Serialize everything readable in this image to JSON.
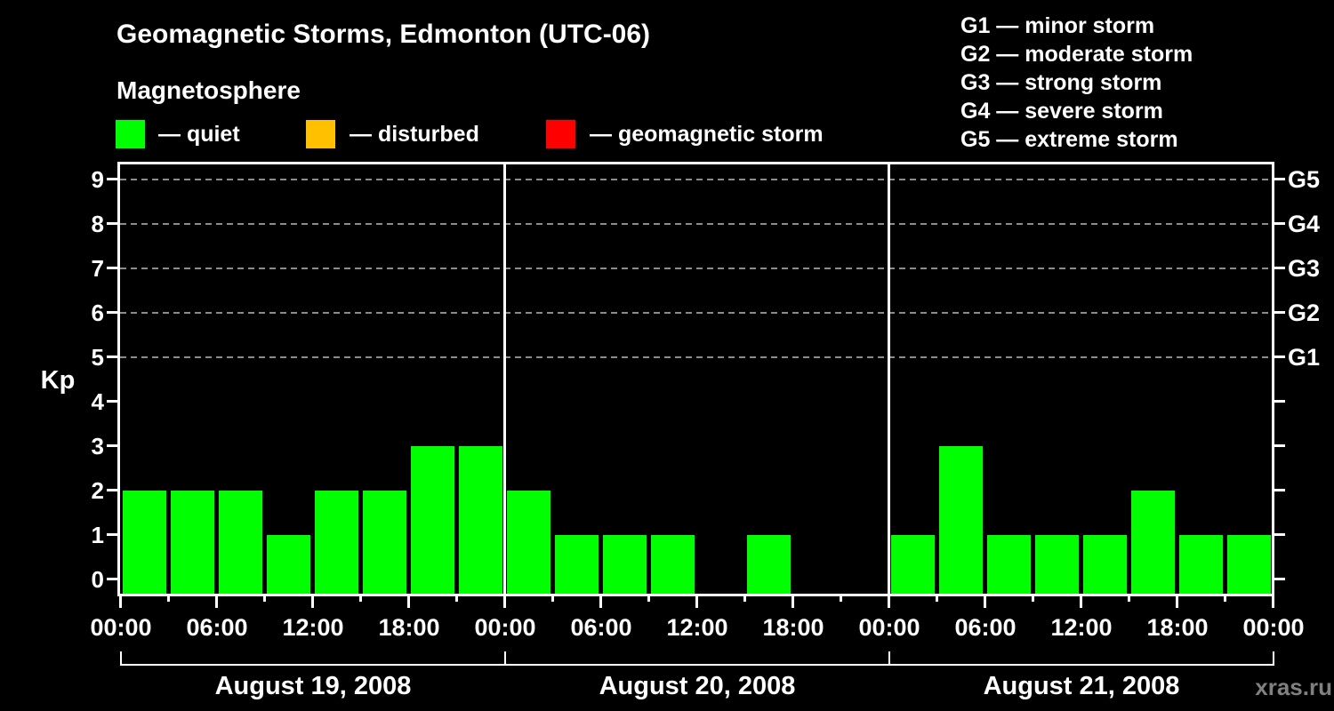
{
  "watermark": "xras.ru",
  "chart_data": {
    "type": "bar",
    "title": "Geomagnetic Storms, Edmonton (UTC-06)",
    "subtitle": "Magnetosphere",
    "ylabel": "Kp",
    "ylim": [
      0,
      9
    ],
    "yticks": [
      0,
      1,
      2,
      3,
      4,
      5,
      6,
      7,
      8,
      9
    ],
    "grid_levels": [
      5,
      6,
      7,
      8,
      9
    ],
    "grid": "dashed horizontal lines at storm levels",
    "legend_position": "top",
    "right_axis": [
      {
        "kp": 5,
        "label": "G1"
      },
      {
        "kp": 6,
        "label": "G2"
      },
      {
        "kp": 7,
        "label": "G3"
      },
      {
        "kp": 8,
        "label": "G4"
      },
      {
        "kp": 9,
        "label": "G5"
      }
    ],
    "interval_hours": 3,
    "label_step_hours": 6,
    "x_tick_labels": [
      "00:00",
      "06:00",
      "12:00",
      "18:00",
      "00:00",
      "06:00",
      "12:00",
      "18:00",
      "00:00",
      "06:00",
      "12:00",
      "18:00",
      "00:00"
    ],
    "days": [
      {
        "date": "August 19, 2008",
        "kp": [
          2,
          2,
          2,
          1,
          2,
          2,
          3,
          3
        ]
      },
      {
        "date": "August 20, 2008",
        "kp": [
          2,
          1,
          1,
          1,
          0,
          1,
          0,
          0
        ]
      },
      {
        "date": "August 21, 2008",
        "kp": [
          1,
          3,
          1,
          1,
          1,
          2,
          1,
          1
        ]
      }
    ],
    "activity_legend": [
      {
        "key": "quiet",
        "label": "— quiet",
        "color": "#00ff00"
      },
      {
        "key": "disturbed",
        "label": "— disturbed",
        "color": "#ffc000"
      },
      {
        "key": "geomagnetic-storm",
        "label": "— geomagnetic storm",
        "color": "#ff0000"
      }
    ],
    "color_rules": {
      "quiet_max_kp": 3,
      "disturbed_max_kp": 4
    },
    "g_scale_legend": [
      "G1 — minor storm",
      "G2 — moderate storm",
      "G3 — strong storm",
      "G4 — severe storm",
      "G5 — extreme storm"
    ]
  }
}
